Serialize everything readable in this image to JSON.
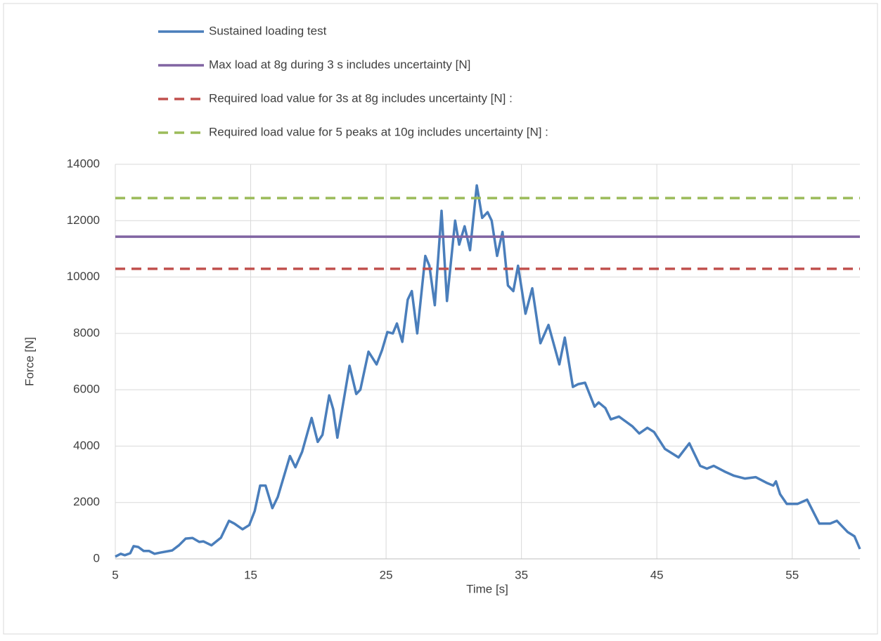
{
  "chart_data": {
    "type": "line",
    "xlabel": "Time [s]",
    "ylabel": "Force [N]",
    "xlim": [
      5,
      60
    ],
    "xticks": [
      5,
      15,
      25,
      35,
      45,
      55
    ],
    "ylim": [
      0,
      14000
    ],
    "yticks": [
      0,
      2000,
      4000,
      6000,
      8000,
      10000,
      12000,
      14000
    ],
    "grid": true,
    "x": [
      5,
      5.4,
      5.7,
      6.1,
      6.35,
      6.7,
      7.1,
      7.5,
      7.9,
      8.3,
      9.2,
      9.7,
      10.2,
      10.7,
      11.2,
      11.5,
      12.1,
      12.8,
      13.4,
      13.8,
      14.4,
      14.9,
      15.3,
      15.7,
      16.1,
      16.6,
      17.0,
      17.9,
      18.3,
      18.8,
      19.5,
      19.95,
      20.3,
      20.8,
      21.1,
      21.4,
      22.3,
      22.8,
      23.1,
      23.7,
      24.3,
      24.7,
      25.1,
      25.5,
      25.8,
      26.2,
      26.6,
      26.9,
      27.3,
      27.9,
      28.2,
      28.6,
      29.1,
      29.5,
      30.1,
      30.4,
      30.8,
      31.2,
      31.7,
      32.1,
      32.5,
      32.8,
      33.2,
      33.6,
      34.0,
      34.4,
      34.75,
      35.3,
      35.8,
      36.4,
      37.0,
      37.8,
      38.2,
      38.8,
      39.2,
      39.7,
      40.4,
      40.7,
      41.2,
      41.6,
      42.2,
      43.2,
      43.7,
      44.3,
      44.8,
      45.6,
      46.6,
      47.4,
      48.2,
      48.7,
      49.2,
      50.0,
      50.7,
      51.5,
      52.3,
      53.1,
      53.6,
      53.8,
      54.1,
      54.6,
      55.4,
      56.1,
      57.0,
      57.8,
      58.3,
      59.1,
      59.6,
      60
    ],
    "series": [
      {
        "name": "Sustained loading test",
        "color": "#4a7ebb",
        "dash": false,
        "values": [
          80,
          180,
          130,
          200,
          450,
          420,
          280,
          280,
          180,
          220,
          300,
          480,
          720,
          740,
          600,
          620,
          480,
          750,
          1350,
          1250,
          1050,
          1200,
          1700,
          2600,
          2600,
          1800,
          2200,
          3650,
          3250,
          3800,
          5000,
          4150,
          4400,
          5800,
          5300,
          4300,
          6850,
          5850,
          6000,
          7350,
          6900,
          7400,
          8050,
          8000,
          8350,
          7700,
          9200,
          9500,
          8000,
          10750,
          10400,
          9000,
          12350,
          9150,
          12000,
          11150,
          11800,
          10950,
          13250,
          12100,
          12300,
          12000,
          10750,
          11600,
          9700,
          9500,
          10400,
          8700,
          9600,
          7650,
          8300,
          6900,
          7850,
          6100,
          6200,
          6250,
          5400,
          5550,
          5350,
          4950,
          5050,
          4700,
          4450,
          4650,
          4500,
          3900,
          3600,
          4100,
          3300,
          3200,
          3300,
          3100,
          2950,
          2850,
          2900,
          2700,
          2600,
          2750,
          2300,
          1950,
          1950,
          2100,
          1250,
          1250,
          1350,
          950,
          800,
          350
        ]
      },
      {
        "name": "Max load at 8g during 3 s includes uncertainty [N]",
        "color": "#8064a2",
        "dash": false,
        "value": 11430
      },
      {
        "name": "Required load value for 3s at 8g includes uncertainty [N] :",
        "color": "#c0504d",
        "dash": true,
        "value": 10290
      },
      {
        "name": "Required load value for 5 peaks at 10g includes uncertainty [N] :",
        "color": "#9bbb59",
        "dash": true,
        "value": 12800
      }
    ]
  }
}
